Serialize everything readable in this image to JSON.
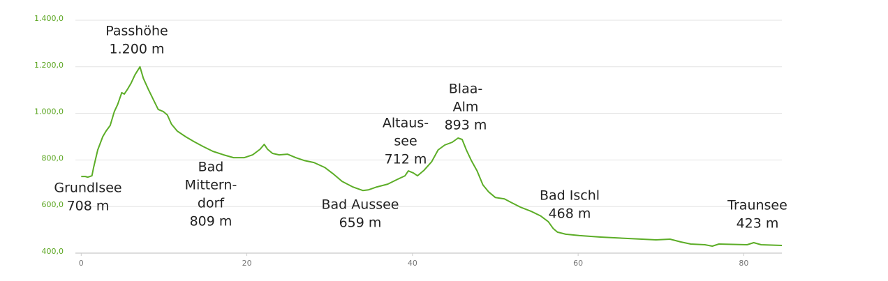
{
  "chart_data": {
    "type": "line",
    "x": [
      0,
      0.5,
      0.8,
      1.3,
      1.5,
      2.0,
      2.6,
      3.0,
      3.5,
      4.0,
      4.4,
      4.9,
      5.2,
      5.6,
      6.0,
      6.5,
      7.1,
      7.5,
      8.1,
      8.8,
      9.3,
      9.9,
      10.4,
      10.9,
      11.6,
      12.6,
      13.6,
      14.7,
      15.9,
      17.2,
      18.4,
      19.7,
      20.7,
      21.6,
      22.1,
      22.5,
      23.1,
      23.9,
      24.9,
      25.9,
      26.9,
      28.1,
      29.4,
      30.5,
      31.5,
      32.8,
      34.0,
      34.7,
      35.7,
      37.0,
      38.2,
      39.1,
      39.5,
      40.1,
      40.6,
      41.4,
      42.3,
      43.1,
      43.9,
      44.8,
      45.5,
      46.0,
      46.5,
      47.1,
      47.8,
      48.5,
      49.2,
      50.0,
      51.1,
      51.9,
      53.0,
      54.3,
      55.5,
      56.4,
      57.0,
      57.5,
      58.5,
      60.2,
      62.7,
      66.0,
      69.4,
      71.1,
      72.4,
      73.6,
      75.3,
      76.2,
      77.0,
      80.4,
      81.2,
      82.1,
      84.6
    ],
    "series": [
      {
        "color": "#5cad27",
        "values": [
          729,
          729,
          726,
          732,
          768,
          843,
          900,
          924,
          948,
          1008,
          1038,
          1089,
          1083,
          1104,
          1128,
          1166,
          1200,
          1151,
          1104,
          1053,
          1017,
          1008,
          993,
          954,
          924,
          900,
          879,
          858,
          837,
          822,
          810,
          810,
          822,
          846,
          867,
          846,
          828,
          822,
          825,
          810,
          798,
          789,
          768,
          738,
          708,
          684,
          669,
          672,
          684,
          696,
          717,
          732,
          753,
          744,
          732,
          756,
          792,
          843,
          864,
          876,
          894,
          888,
          843,
          798,
          753,
          693,
          663,
          639,
          633,
          618,
          598,
          580,
          559,
          535,
          505,
          490,
          481,
          475,
          469,
          463,
          457,
          460,
          448,
          439,
          436,
          430,
          439,
          436,
          445,
          436,
          433
        ]
      }
    ],
    "xlim": [
      -0.7,
      84.6
    ],
    "xticks": [
      0,
      20,
      40,
      60,
      80
    ],
    "ylim": [
      400,
      1400
    ],
    "yticks": [
      {
        "value": 400,
        "label": "400,0"
      },
      {
        "value": 600,
        "label": "600,0"
      },
      {
        "value": 800,
        "label": "800,0"
      },
      {
        "value": 1000,
        "label": "1.000,0"
      },
      {
        "value": 1200,
        "label": "1.200,0"
      },
      {
        "value": 1400,
        "label": "1.400,0"
      }
    ],
    "grid": true,
    "annotations": [
      [
        "Passhöhe",
        "1.200 m"
      ],
      [
        "Grundlsee",
        "708 m"
      ],
      [
        "Bad",
        "Mittern-",
        "dorf",
        "809 m"
      ],
      [
        "Bad Aussee",
        "659 m"
      ],
      [
        "Altaus-",
        "see",
        "712 m"
      ],
      [
        "Blaa-",
        "Alm",
        "893 m"
      ],
      [
        "Bad Ischl",
        "468 m"
      ],
      [
        "Traunsee",
        "423 m"
      ]
    ]
  }
}
